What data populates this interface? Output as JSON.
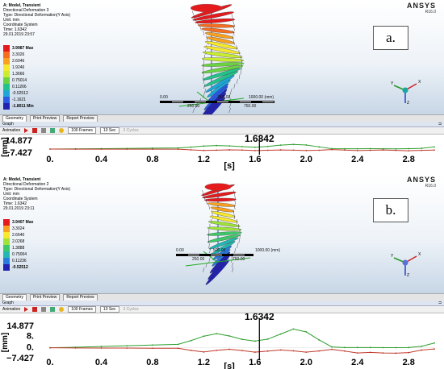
{
  "brand": {
    "name": "ANSYS",
    "version": "R16.0"
  },
  "tabs": [
    "Geometry",
    "Print Preview",
    "Report Preview"
  ],
  "graph_title": "Graph",
  "toolbar": {
    "animation_label": "Animation",
    "frames": "100 Frames",
    "duration": "10 Sec",
    "cycles": "3 Cycles"
  },
  "axis": {
    "unit_label": "[mm]",
    "x_label": "[s]",
    "x_ticks": [
      "0.",
      "0.4",
      "0.8",
      "1.2",
      "1.6",
      "2.0",
      "2.4",
      "2.8"
    ],
    "marker_time": "1.6342"
  },
  "colors": {
    "series_green": "#2e9e2e",
    "series_red": "#c0392b",
    "marker": "#000000"
  },
  "panel_a": {
    "label": "a.",
    "info": [
      "A: Model, Transient",
      "Directional Deformation 3",
      "Type: Directional Deformation(Y Axis)",
      "Unit: mm",
      "Coordinate System",
      "Time: 1.6342",
      "29.01.2019 23:57"
    ],
    "legend": [
      "3.9987 Max",
      "3.3026",
      "2.6046",
      "1.9246",
      "1.3666",
      "0.75014",
      "0.11266",
      "-0.52512",
      "-1.1621",
      "-1.8011 Min"
    ],
    "legend_colors": [
      "#e41a1c",
      "#f46d21",
      "#f8a01f",
      "#f6e82d",
      "#c9ec30",
      "#6bd341",
      "#22c38a",
      "#1ea7d6",
      "#2a5be0",
      "#2222b0"
    ],
    "scale": {
      "left": "0.00",
      "mid_left": "250.00",
      "mid": "500.00",
      "mid_right": "750.00",
      "right": "1000.00 (mm)"
    },
    "y_ticks": [
      "14.877",
      "−7.427"
    ],
    "chart_data": {
      "type": "line",
      "x": [
        0,
        0.2,
        0.4,
        0.6,
        0.8,
        1.0,
        1.1,
        1.2,
        1.3,
        1.4,
        1.5,
        1.6,
        1.7,
        1.8,
        1.9,
        2.0,
        2.1,
        2.2,
        2.3,
        2.4,
        2.5,
        2.6,
        2.7,
        2.8,
        2.9,
        3.0
      ],
      "series": [
        {
          "values": [
            0,
            0.3,
            0.7,
            1.1,
            1.6,
            2.1,
            3.5,
            5.5,
            6.5,
            5.8,
            4.5,
            3.3,
            4.8,
            7.2,
            8.6,
            7.5,
            4.0,
            0.8,
            0.5,
            0.6,
            0.8,
            0.6,
            0.4,
            0.7,
            1.4,
            4.0
          ]
        },
        {
          "values": [
            0,
            -0.1,
            -0.1,
            -0.2,
            -0.2,
            -0.2,
            -1.5,
            -2.6,
            -2.0,
            -1.4,
            -1.9,
            -2.8,
            -2.2,
            -1.6,
            -2.0,
            -2.7,
            -2.2,
            -1.0,
            -1.9,
            -2.8,
            -2.3,
            -1.6,
            -2.4,
            -3.1,
            -2.5,
            -1.8
          ]
        }
      ],
      "xlim": [
        0,
        3.0
      ],
      "ylim": [
        -7.427,
        14.877
      ]
    }
  },
  "panel_b": {
    "label": "b.",
    "info": [
      "A: Model, Transient",
      "Directional Deformation 2",
      "Type: Directional Deformation(Y Axis)",
      "Unit: mm",
      "Coordinate System",
      "Time: 1.6342",
      "29.01.2019 23:11"
    ],
    "legend": [
      "3.9407 Max",
      "3.3024",
      "2.6640",
      "2.0268",
      "1.3888",
      "0.75004",
      "0.11236",
      "-0.52512"
    ],
    "legend_colors": [
      "#e41a1c",
      "#f8a01f",
      "#f6e82d",
      "#9ee23a",
      "#3ec86a",
      "#22b7b0",
      "#2a7be0",
      "#2222b0"
    ],
    "scale": {
      "left": "0.00",
      "mid_left": "250.00",
      "mid": "500.00",
      "right": "1000.00 (mm)",
      "mid_right": "750.00"
    },
    "y_ticks": [
      "14.877",
      "8.",
      "0.",
      "−7.427"
    ],
    "chart_data": {
      "type": "line",
      "x": [
        0,
        0.2,
        0.4,
        0.6,
        0.8,
        1.0,
        1.1,
        1.2,
        1.3,
        1.4,
        1.5,
        1.6,
        1.7,
        1.8,
        1.9,
        2.0,
        2.1,
        2.2,
        2.3,
        2.4,
        2.5,
        2.6,
        2.7,
        2.8,
        2.9,
        3.0
      ],
      "series": [
        {
          "values": [
            0,
            0.4,
            0.9,
            1.4,
            1.9,
            2.4,
            5.0,
            8.0,
            9.8,
            8.2,
            5.8,
            4.6,
            6.0,
            9.5,
            13.0,
            11.0,
            5.5,
            0.6,
            0.2,
            0.2,
            0.2,
            0.1,
            0.1,
            0.2,
            1.0,
            3.3
          ]
        },
        {
          "values": [
            0,
            -0.1,
            -0.2,
            -0.2,
            -0.3,
            -0.3,
            -1.8,
            -2.9,
            -1.8,
            -1.0,
            -1.9,
            -3.0,
            -2.3,
            -1.5,
            -2.1,
            -3.0,
            -2.2,
            -1.1,
            -2.3,
            -3.6,
            -3.2,
            -3.6,
            -3.7,
            -3.3,
            -1.6,
            -0.8
          ]
        }
      ],
      "xlim": [
        0,
        3.0
      ],
      "ylim": [
        -7.427,
        14.877
      ]
    }
  }
}
